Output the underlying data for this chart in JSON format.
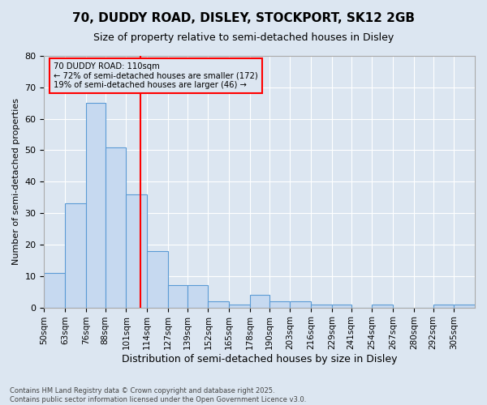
{
  "title_line1": "70, DUDDY ROAD, DISLEY, STOCKPORT, SK12 2GB",
  "title_line2": "Size of property relative to semi-detached houses in Disley",
  "xlabel": "Distribution of semi-detached houses by size in Disley",
  "ylabel": "Number of semi-detached properties",
  "bins": [
    50,
    63,
    76,
    88,
    101,
    114,
    127,
    139,
    152,
    165,
    178,
    190,
    203,
    216,
    229,
    241,
    254,
    267,
    280,
    292,
    305
  ],
  "bin_labels": [
    "50sqm",
    "63sqm",
    "76sqm",
    "88sqm",
    "101sqm",
    "114sqm",
    "127sqm",
    "139sqm",
    "152sqm",
    "165sqm",
    "178sqm",
    "190sqm",
    "203sqm",
    "216sqm",
    "229sqm",
    "241sqm",
    "254sqm",
    "267sqm",
    "280sqm",
    "292sqm",
    "305sqm"
  ],
  "values": [
    11,
    33,
    65,
    51,
    36,
    18,
    7,
    7,
    2,
    1,
    4,
    2,
    2,
    1,
    1,
    0,
    1,
    0,
    0,
    1,
    1
  ],
  "bar_color": "#c6d9f0",
  "bar_edge_color": "#5b9bd5",
  "bg_color": "#dce6f1",
  "grid_color": "#ffffff",
  "reference_line_x": 110,
  "reference_line_color": "red",
  "annotation_title": "70 DUDDY ROAD: 110sqm",
  "annotation_line1": "← 72% of semi-detached houses are smaller (172)",
  "annotation_line2": "19% of semi-detached houses are larger (46) →",
  "annotation_box_color": "red",
  "ylim": [
    0,
    80
  ],
  "yticks": [
    0,
    10,
    20,
    30,
    40,
    50,
    60,
    70,
    80
  ],
  "footer": "Contains HM Land Registry data © Crown copyright and database right 2025.\nContains public sector information licensed under the Open Government Licence v3.0.",
  "figsize": [
    6.0,
    5.0
  ],
  "dpi": 100
}
